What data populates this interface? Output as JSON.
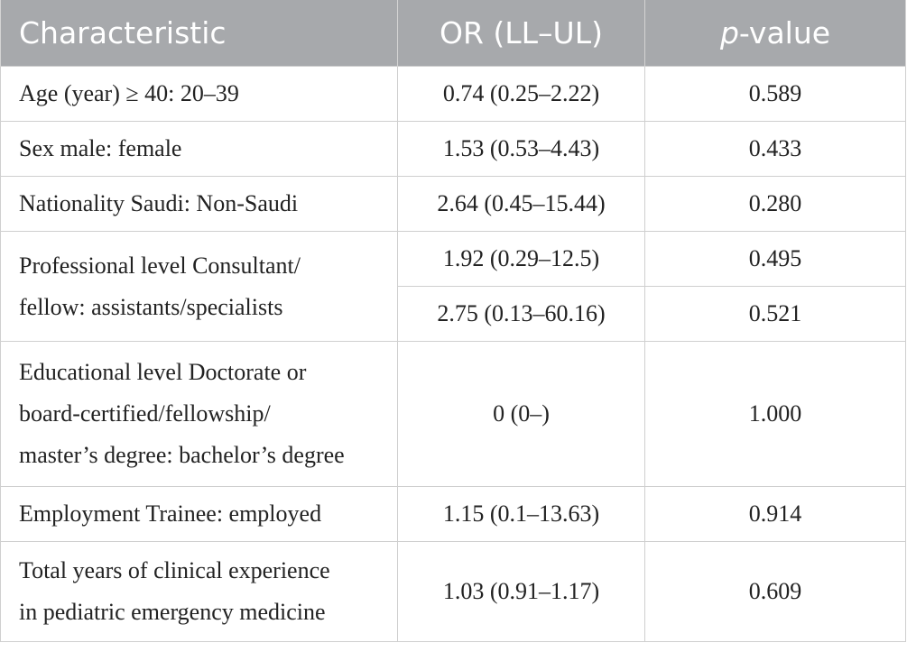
{
  "header": {
    "col1": "Characteristic",
    "col2": "OR (LL–UL)",
    "col3_italic": "p",
    "col3_rest": "-value"
  },
  "rows": [
    {
      "characteristic": "Age (year) ≥ 40: 20–39",
      "or": "0.74 (0.25–2.22)",
      "p": "0.589"
    },
    {
      "characteristic": "Sex male: female",
      "or": "1.53 (0.53–4.43)",
      "p": "0.433"
    },
    {
      "characteristic": "Nationality Saudi: Non-Saudi",
      "or": "2.64 (0.45–15.44)",
      "p": "0.280"
    },
    {
      "characteristic_line1": "Professional level Consultant/",
      "characteristic_line2": "fellow: assistants/specialists",
      "sub": [
        {
          "or": "1.92 (0.29–12.5)",
          "p": "0.495"
        },
        {
          "or": "2.75 (0.13–60.16)",
          "p": "0.521"
        }
      ]
    },
    {
      "characteristic_line1": "Educational level Doctorate or",
      "characteristic_line2": "board-certified/fellowship/",
      "characteristic_line3": "master’s degree: bachelor’s degree",
      "or": "0 (0–)",
      "p": "1.000"
    },
    {
      "characteristic": "Employment Trainee: employed",
      "or": "1.15 (0.1–13.63)",
      "p": "0.914"
    },
    {
      "characteristic_line1": "Total years of clinical experience",
      "characteristic_line2": "in pediatric emergency medicine",
      "or": "1.03 (0.91–1.17)",
      "p": "0.609"
    }
  ]
}
